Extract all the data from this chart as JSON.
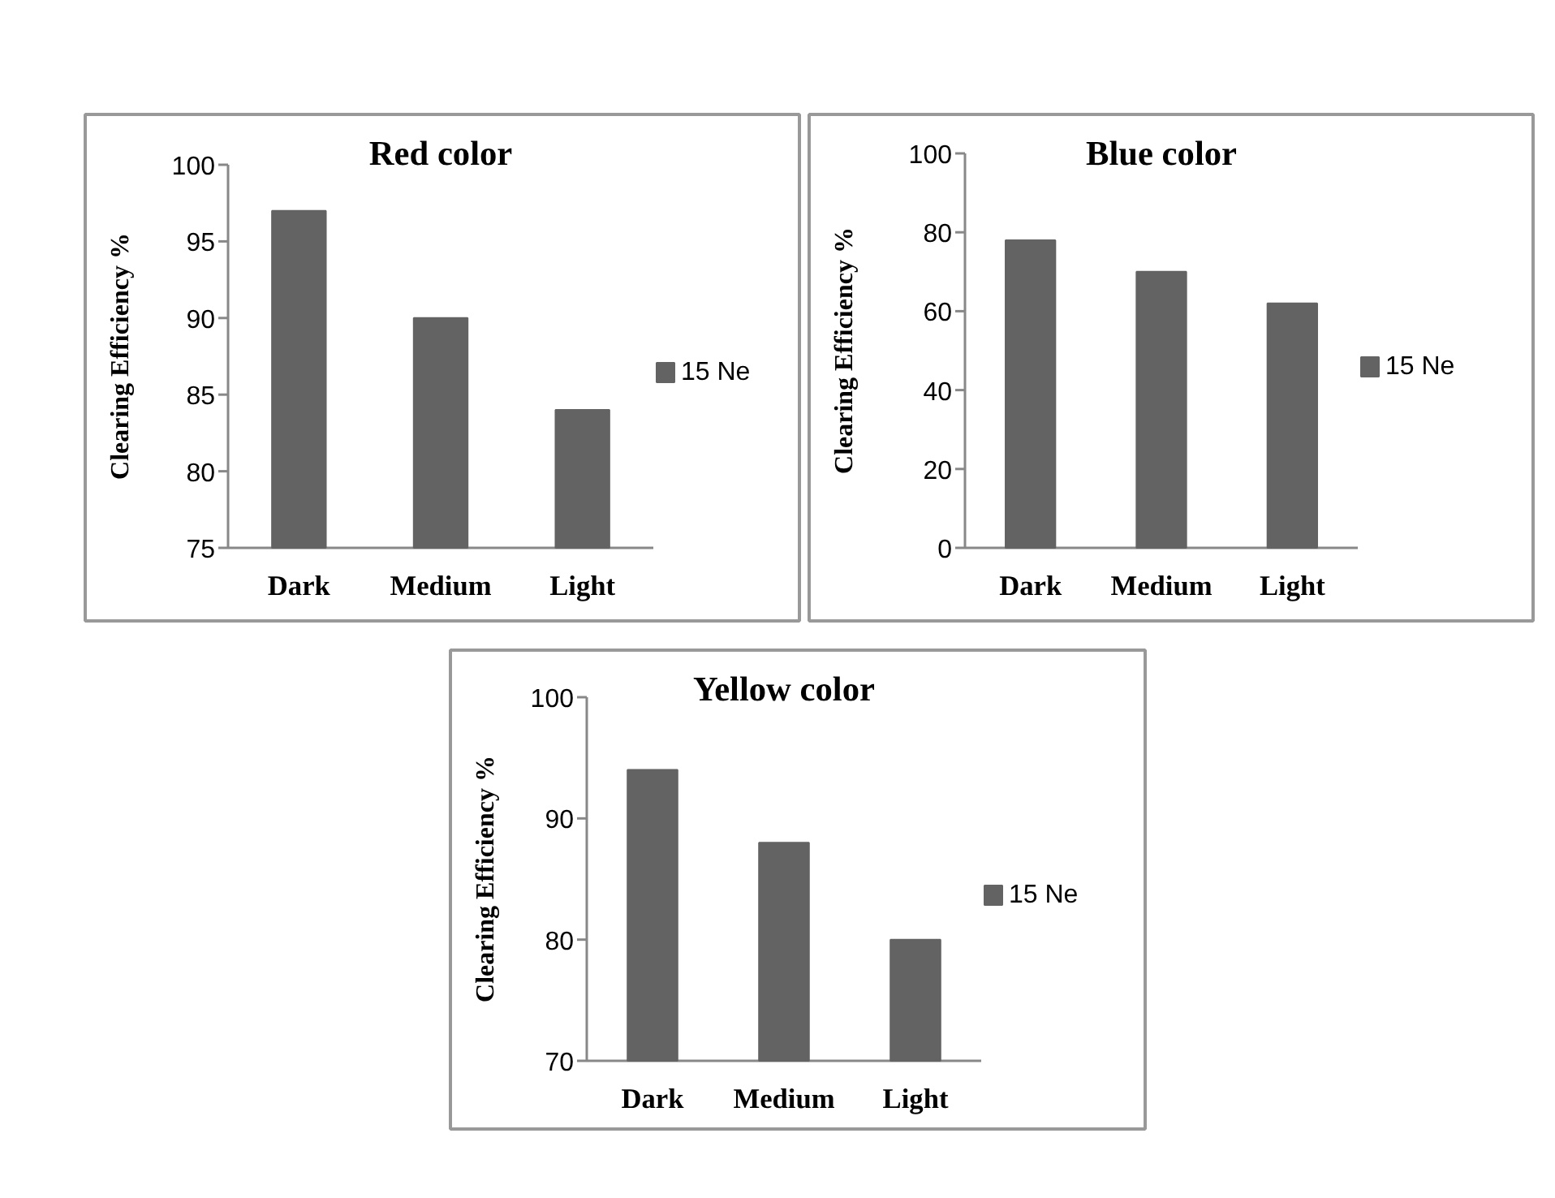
{
  "chart_data": [
    {
      "type": "bar",
      "title": "Red color",
      "ylabel": "Clearing Efficiency %",
      "categories": [
        "Dark",
        "Medium",
        "Light"
      ],
      "series": [
        {
          "name": "15 Ne",
          "color": "#636363",
          "values": [
            97,
            90,
            84
          ]
        }
      ],
      "ylim": [
        75,
        100
      ],
      "yticks": [
        75,
        80,
        85,
        90,
        95,
        100
      ],
      "grid": false,
      "legend": "right"
    },
    {
      "type": "bar",
      "title": "Blue color",
      "ylabel": "Clearing Efficiency %",
      "categories": [
        "Dark",
        "Medium",
        "Light"
      ],
      "series": [
        {
          "name": "15 Ne",
          "color": "#636363",
          "values": [
            78,
            70,
            62
          ]
        }
      ],
      "ylim": [
        0,
        100
      ],
      "yticks": [
        0,
        20,
        40,
        60,
        80,
        100
      ],
      "grid": false,
      "legend": "right"
    },
    {
      "type": "bar",
      "title": "Yellow color",
      "ylabel": "Clearing Efficiency %",
      "categories": [
        "Dark",
        "Medium",
        "Light"
      ],
      "series": [
        {
          "name": "15 Ne",
          "color": "#636363",
          "values": [
            94,
            88,
            80
          ]
        }
      ],
      "ylim": [
        70,
        100
      ],
      "yticks": [
        70,
        80,
        90,
        100
      ],
      "grid": false,
      "legend": "right"
    }
  ]
}
